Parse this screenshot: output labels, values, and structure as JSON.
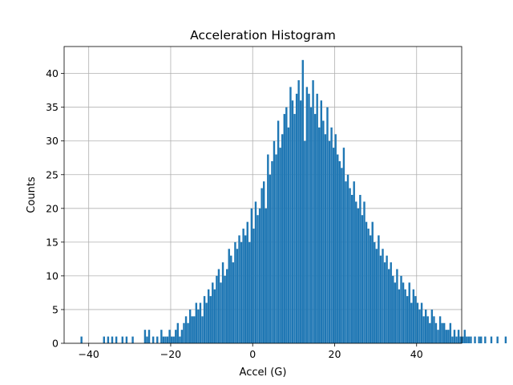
{
  "chart_data": {
    "type": "bar",
    "title": "Acceleration Histogram",
    "xlabel": "Accel (G)",
    "ylabel": "Counts",
    "xlim": [
      -46,
      51
    ],
    "ylim": [
      0,
      44
    ],
    "xticks": [
      -40,
      -20,
      0,
      20,
      40
    ],
    "xtick_labels": [
      "−40",
      "−20",
      "0",
      "20",
      "40"
    ],
    "yticks": [
      0,
      5,
      10,
      15,
      20,
      25,
      30,
      35,
      40
    ],
    "ytick_labels": [
      "0",
      "5",
      "10",
      "15",
      "20",
      "25",
      "30",
      "35",
      "40"
    ],
    "grid": true,
    "color": "#1f77b4",
    "bin_width": 0.5,
    "bin_start": -42,
    "counts": [
      1,
      0,
      0,
      0,
      0,
      0,
      0,
      0,
      0,
      0,
      0,
      1,
      0,
      1,
      0,
      1,
      0,
      1,
      0,
      0,
      1,
      0,
      1,
      0,
      0,
      1,
      0,
      0,
      0,
      0,
      0,
      2,
      1,
      2,
      0,
      1,
      0,
      1,
      0,
      2,
      1,
      1,
      1,
      2,
      1,
      1,
      2,
      3,
      1,
      2,
      3,
      4,
      3,
      5,
      4,
      4,
      6,
      5,
      6,
      4,
      7,
      6,
      8,
      7,
      9,
      8,
      10,
      11,
      9,
      12,
      10,
      11,
      14,
      13,
      12,
      15,
      14,
      16,
      15,
      17,
      16,
      18,
      15,
      20,
      17,
      21,
      19,
      20,
      23,
      24,
      20,
      28,
      25,
      27,
      30,
      28,
      33,
      29,
      31,
      34,
      35,
      32,
      38,
      36,
      34,
      37,
      39,
      36,
      42,
      30,
      38,
      37,
      35,
      39,
      34,
      37,
      32,
      36,
      33,
      31,
      35,
      30,
      32,
      29,
      31,
      28,
      27,
      26,
      29,
      24,
      25,
      23,
      22,
      24,
      21,
      20,
      22,
      19,
      21,
      18,
      17,
      16,
      18,
      15,
      14,
      16,
      13,
      14,
      12,
      13,
      11,
      12,
      10,
      9,
      11,
      8,
      10,
      9,
      8,
      7,
      9,
      6,
      8,
      7,
      6,
      5,
      6,
      4,
      5,
      4,
      3,
      5,
      4,
      3,
      2,
      4,
      3,
      3,
      2,
      2,
      3,
      1,
      2,
      1,
      2,
      1,
      1,
      2,
      1,
      1,
      1,
      0,
      1,
      0,
      1,
      1,
      0,
      1,
      0,
      0,
      1,
      0,
      0,
      1,
      0,
      0,
      0,
      1,
      0,
      0,
      0,
      0,
      0,
      1,
      0,
      0,
      0,
      0,
      0,
      0,
      0,
      0,
      1,
      0,
      0,
      0,
      0,
      0,
      0,
      0,
      1
    ]
  }
}
